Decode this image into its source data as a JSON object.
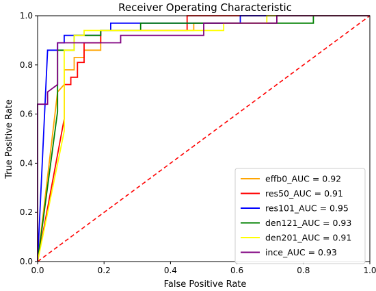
{
  "chart_data": {
    "type": "line",
    "title": "Receiver Operating Characteristic",
    "xlabel": "False Positive Rate",
    "ylabel": "True Positive Rate",
    "xlim": [
      0,
      1
    ],
    "ylim": [
      0,
      1
    ],
    "xticks": [
      "0.0",
      "0.2",
      "0.4",
      "0.6",
      "0.8",
      "1.0"
    ],
    "yticks": [
      "0.0",
      "0.2",
      "0.4",
      "0.6",
      "0.8",
      "1.0"
    ],
    "grid": false,
    "legend_position": "lower-right",
    "reference_line": {
      "x": [
        0,
        1
      ],
      "y": [
        0,
        1
      ],
      "color": "#ff0000",
      "style": "dashed"
    },
    "series": [
      {
        "name": "effb0_AUC = 0.92",
        "color": "#ffa500",
        "x": [
          0,
          0.06,
          0.08,
          0.08,
          0.11,
          0.11,
          0.14,
          0.14,
          0.19,
          0.19,
          0.47,
          0.47,
          0.72,
          0.72,
          1.0
        ],
        "y": [
          0,
          0.69,
          0.72,
          0.78,
          0.78,
          0.83,
          0.83,
          0.86,
          0.86,
          0.94,
          0.94,
          0.97,
          0.97,
          1.0,
          1.0
        ]
      },
      {
        "name": "res50_AUC = 0.91",
        "color": "#ff0000",
        "x": [
          0,
          0.08,
          0.08,
          0.1,
          0.1,
          0.12,
          0.12,
          0.14,
          0.14,
          0.19,
          0.19,
          0.45,
          0.45,
          1.0
        ],
        "y": [
          0,
          0.58,
          0.72,
          0.72,
          0.75,
          0.75,
          0.81,
          0.81,
          0.89,
          0.89,
          0.94,
          0.94,
          1.0,
          1.0
        ]
      },
      {
        "name": "res101_AUC = 0.95",
        "color": "#0000ff",
        "x": [
          0,
          0.03,
          0.03,
          0.06,
          0.06,
          0.08,
          0.08,
          0.19,
          0.19,
          0.22,
          0.22,
          0.61,
          0.61,
          1.0
        ],
        "y": [
          0,
          0.86,
          0.86,
          0.86,
          0.89,
          0.89,
          0.92,
          0.92,
          0.94,
          0.94,
          0.97,
          0.97,
          1.0,
          1.0
        ]
      },
      {
        "name": "den121_AUC = 0.93",
        "color": "#008000",
        "x": [
          0,
          0.06,
          0.06,
          0.11,
          0.11,
          0.19,
          0.19,
          0.31,
          0.31,
          0.83,
          0.83,
          1.0
        ],
        "y": [
          0,
          0.61,
          0.86,
          0.86,
          0.92,
          0.92,
          0.94,
          0.94,
          0.97,
          0.97,
          1.0,
          1.0
        ]
      },
      {
        "name": "den201_AUC = 0.91",
        "color": "#ffff00",
        "x": [
          0,
          0.08,
          0.08,
          0.11,
          0.11,
          0.14,
          0.14,
          0.56,
          0.56,
          0.69,
          0.69,
          1.0
        ],
        "y": [
          0,
          0.53,
          0.86,
          0.86,
          0.92,
          0.92,
          0.94,
          0.94,
          0.97,
          0.97,
          1.0,
          1.0
        ]
      },
      {
        "name": "ince_AUC = 0.93",
        "color": "#800080",
        "x": [
          0,
          0,
          0.03,
          0.03,
          0.06,
          0.06,
          0.25,
          0.25,
          0.5,
          0.5,
          0.72,
          0.72,
          1.0
        ],
        "y": [
          0,
          0.64,
          0.64,
          0.69,
          0.72,
          0.89,
          0.89,
          0.92,
          0.92,
          0.97,
          0.97,
          1.0,
          1.0
        ]
      }
    ]
  }
}
